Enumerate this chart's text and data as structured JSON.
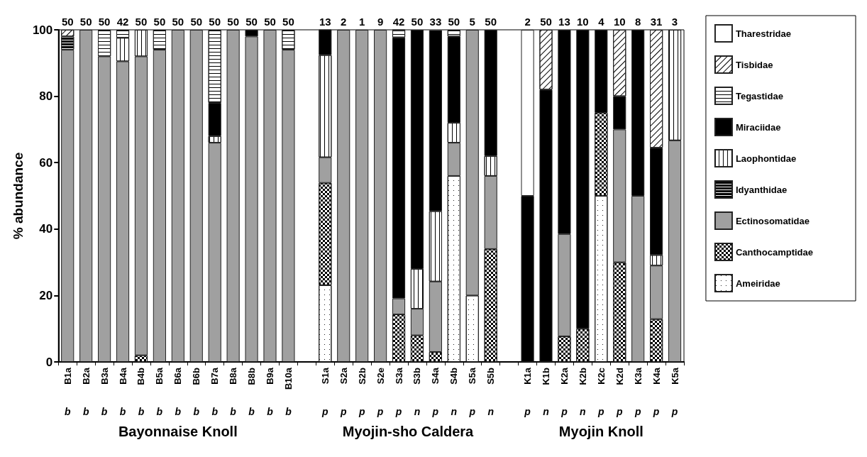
{
  "chart_data": {
    "type": "bar",
    "stacked": true,
    "ylabel": "% abundance",
    "categories": [
      "B1a",
      "B2a",
      "B3a",
      "B4a",
      "B4b",
      "B5a",
      "B6a",
      "B6b",
      "B7a",
      "B8a",
      "B8b",
      "B9a",
      "B10a",
      null,
      "S1a",
      "S2a",
      "S2b",
      "S2e",
      "S3a",
      "S3b",
      "S4a",
      "S4b",
      "S5a",
      "S5b",
      null,
      "K1a",
      "K1b",
      "K2a",
      "K2b",
      "K2c",
      "K2d",
      "K3a",
      "K4a",
      "K5a"
    ],
    "ylim": [
      0,
      100
    ],
    "yticks": [
      0,
      20,
      40,
      60,
      80,
      100
    ],
    "grid": false,
    "legend": "right",
    "series": [
      {
        "name": "Ameiridae",
        "color": "#ffffff",
        "values": [
          null,
          null,
          null,
          null,
          null,
          null,
          null,
          null,
          null,
          null,
          null,
          null,
          null,
          null,
          23.1,
          null,
          null,
          null,
          null,
          null,
          null,
          56,
          20,
          null,
          null,
          null,
          null,
          null,
          null,
          50,
          null,
          null,
          null,
          null
        ]
      },
      {
        "name": "Canthocamptidae",
        "color": "#ffffff",
        "values": [
          null,
          null,
          null,
          null,
          2,
          null,
          null,
          null,
          null,
          null,
          null,
          null,
          null,
          null,
          30.8,
          null,
          null,
          null,
          14.3,
          8,
          3.0,
          null,
          null,
          34,
          null,
          null,
          null,
          7.7,
          10,
          25,
          30,
          null,
          12.9,
          null
        ]
      },
      {
        "name": "Ectinosomatidae",
        "color": "#a0a0a0",
        "values": [
          94,
          100,
          92,
          90.5,
          90,
          94,
          100,
          100,
          66,
          100,
          98,
          100,
          94,
          null,
          7.7,
          100,
          100,
          100,
          4.8,
          8,
          21.2,
          10,
          80,
          22,
          null,
          null,
          null,
          30.8,
          null,
          null,
          40,
          50,
          16.1,
          66.7
        ]
      },
      {
        "name": "Idyanthidae",
        "color": "#000000",
        "values": [
          4,
          null,
          null,
          null,
          null,
          null,
          null,
          null,
          null,
          null,
          null,
          null,
          null,
          null,
          null,
          null,
          null,
          null,
          null,
          null,
          null,
          null,
          null,
          null,
          null,
          null,
          null,
          null,
          null,
          null,
          null,
          null,
          null,
          null
        ]
      },
      {
        "name": "Laophontidae",
        "color": "#ffffff",
        "values": [
          null,
          null,
          null,
          7.1,
          8,
          null,
          null,
          null,
          2,
          null,
          null,
          null,
          null,
          null,
          30.8,
          null,
          null,
          null,
          null,
          12,
          21.2,
          6,
          null,
          6,
          null,
          null,
          null,
          null,
          null,
          null,
          null,
          null,
          3.2,
          33.3
        ]
      },
      {
        "name": "Miraciidae",
        "color": "#000000",
        "values": [
          null,
          null,
          null,
          null,
          null,
          null,
          null,
          null,
          10,
          null,
          2,
          null,
          null,
          null,
          7.7,
          null,
          null,
          null,
          78.6,
          72,
          54.5,
          26,
          null,
          38,
          null,
          50,
          82,
          61.5,
          90,
          25,
          10,
          50,
          32.3,
          null
        ]
      },
      {
        "name": "Tegastidae",
        "color": "#ffffff",
        "values": [
          null,
          null,
          8,
          2.4,
          null,
          6,
          null,
          null,
          22,
          null,
          null,
          null,
          6,
          null,
          null,
          null,
          null,
          null,
          2.4,
          null,
          null,
          2,
          null,
          null,
          null,
          null,
          null,
          null,
          null,
          null,
          null,
          null,
          null,
          null
        ]
      },
      {
        "name": "Tisbidae",
        "color": "#ffffff",
        "values": [
          2,
          null,
          null,
          null,
          null,
          null,
          null,
          null,
          null,
          null,
          null,
          null,
          null,
          null,
          null,
          null,
          null,
          null,
          null,
          null,
          null,
          null,
          null,
          null,
          null,
          null,
          18,
          null,
          null,
          null,
          20,
          null,
          35.5,
          null
        ]
      },
      {
        "name": "Tharestridae",
        "color": "#ffffff",
        "values": [
          null,
          null,
          null,
          null,
          null,
          null,
          null,
          null,
          null,
          null,
          null,
          null,
          null,
          null,
          null,
          null,
          null,
          null,
          null,
          null,
          null,
          null,
          null,
          null,
          null,
          50,
          null,
          null,
          null,
          null,
          null,
          null,
          null,
          null
        ]
      }
    ],
    "annotations": [
      {
        "text": "50",
        "x": "B1a",
        "y": 100
      },
      {
        "text": "50",
        "x": "B2a",
        "y": 100
      },
      {
        "text": "50",
        "x": "B3a",
        "y": 100
      },
      {
        "text": "42",
        "x": "B4a",
        "y": 100
      },
      {
        "text": "50",
        "x": "B4b",
        "y": 100
      },
      {
        "text": "50",
        "x": "B5a",
        "y": 100
      },
      {
        "text": "50",
        "x": "B6a",
        "y": 100
      },
      {
        "text": "50",
        "x": "B6b",
        "y": 100
      },
      {
        "text": "50",
        "x": "B7a",
        "y": 100
      },
      {
        "text": "50",
        "x": "B8a",
        "y": 100
      },
      {
        "text": "50",
        "x": "B8b",
        "y": 100
      },
      {
        "text": "50",
        "x": "B9a",
        "y": 100
      },
      {
        "text": "50",
        "x": "B10a",
        "y": 100
      },
      {
        "text": "13",
        "x": "S1a",
        "y": 100
      },
      {
        "text": "2",
        "x": "S2a",
        "y": 100
      },
      {
        "text": "1",
        "x": "S2b",
        "y": 100
      },
      {
        "text": "9",
        "x": "S2e",
        "y": 100
      },
      {
        "text": "42",
        "x": "S3a",
        "y": 100
      },
      {
        "text": "50",
        "x": "S3b",
        "y": 100
      },
      {
        "text": "33",
        "x": "S4a",
        "y": 100
      },
      {
        "text": "50",
        "x": "S4b",
        "y": 100
      },
      {
        "text": "5",
        "x": "S5a",
        "y": 100
      },
      {
        "text": "50",
        "x": "S5b",
        "y": 100
      },
      {
        "text": "2",
        "x": "K1a",
        "y": 100
      },
      {
        "text": "50",
        "x": "K1b",
        "y": 100
      },
      {
        "text": "13",
        "x": "K2a",
        "y": 100
      },
      {
        "text": "10",
        "x": "K2b",
        "y": 100
      },
      {
        "text": "4",
        "x": "K2c",
        "y": 100
      },
      {
        "text": "10",
        "x": "K2d",
        "y": 100
      },
      {
        "text": "8",
        "x": "K3a",
        "y": 100
      },
      {
        "text": "31",
        "x": "K4a",
        "y": 100
      },
      {
        "text": "3",
        "x": "K5a",
        "y": 100
      },
      "b",
      "b",
      "b",
      "b",
      "b",
      "b",
      "b",
      "b",
      "b",
      "b",
      "b",
      "b",
      "b",
      "p",
      "p",
      "p",
      "p",
      "p",
      "n",
      "p",
      "n",
      "p",
      "n",
      "p",
      "n",
      "p",
      "n",
      "p",
      "p",
      "p",
      "p",
      "p",
      "Bayonnaise Knoll",
      "Myojin-sho Caldera",
      "Myojin Knoll"
    ]
  }
}
